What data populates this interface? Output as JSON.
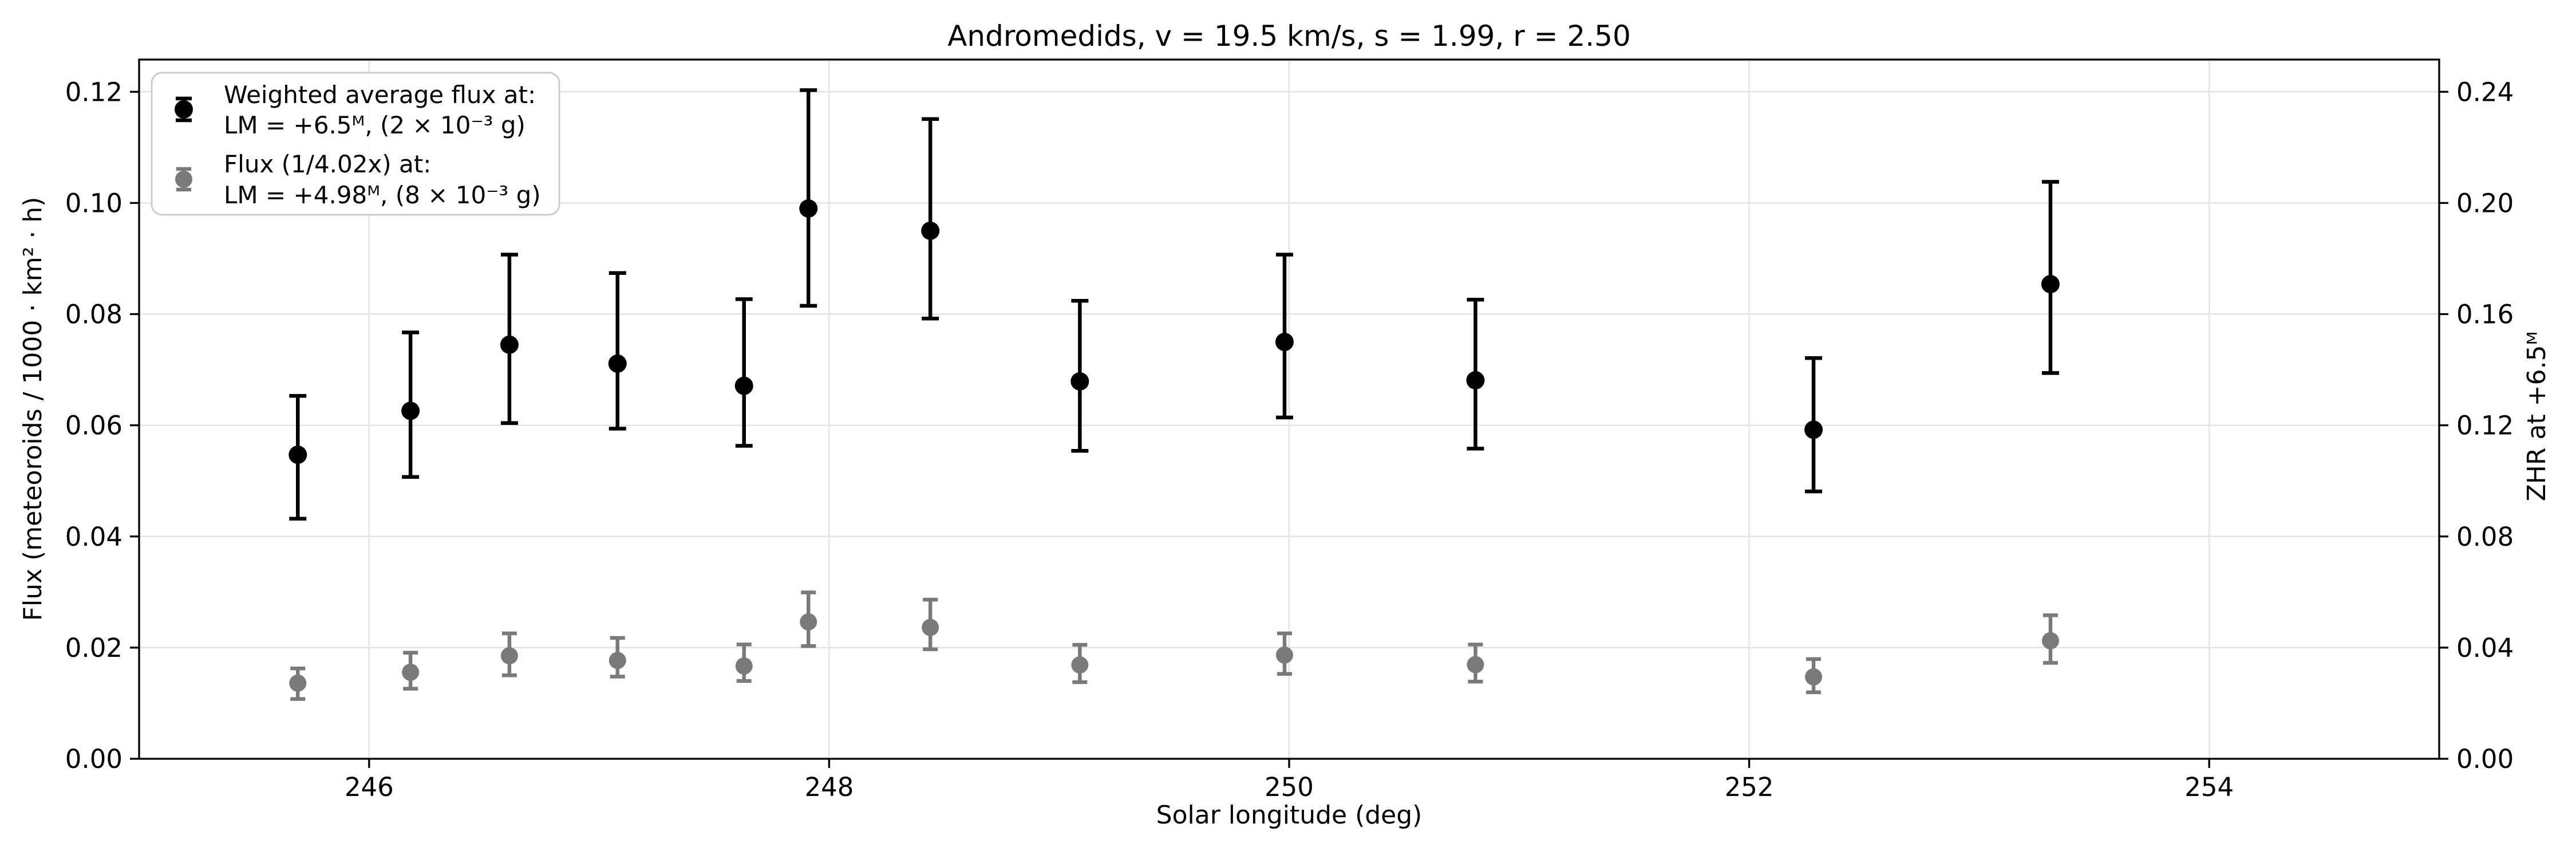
{
  "title": "Andromedids, v = 19.5 km/s, s = 1.99, r = 2.50",
  "axes": {
    "xlabel": "Solar longitude (deg)",
    "ylabel_left": "Flux (meteoroids / 1000 · km² · h)",
    "ylabel_right": "ZHR at +6.5ᴹ",
    "x_ticks": [
      246,
      248,
      250,
      252,
      254
    ],
    "y_ticks_left": [
      0.0,
      0.02,
      0.04,
      0.06,
      0.08,
      0.1,
      0.12
    ],
    "y_ticks_right": [
      0.0,
      0.04,
      0.08,
      0.12,
      0.16,
      0.2,
      0.24
    ],
    "xlim": [
      245.0,
      255.0
    ],
    "ylim_left": [
      0,
      0.1258
    ],
    "ylim_right": [
      0,
      0.2516
    ],
    "grid": true
  },
  "legend": {
    "position": "upper left",
    "entries": [
      {
        "marker_color": "#000000",
        "line1": "Weighted average flux at:",
        "line2": "LM = +6.5ᴹ, (2 × 10⁻³ g)"
      },
      {
        "marker_color": "#7a7a7a",
        "line1": "Flux (1/4.02x) at:",
        "line2": "LM = +4.98ᴹ, (8 × 10⁻³ g)"
      }
    ]
  },
  "chart_data": {
    "type": "scatter",
    "x": [
      245.69,
      246.18,
      246.61,
      247.08,
      247.63,
      247.91,
      248.44,
      249.09,
      249.98,
      250.81,
      252.28,
      253.31
    ],
    "xlabel": "Solar longitude (deg)",
    "ylabel": "Flux (meteoroids / 1000 · km² · h)",
    "ylabel_right": "ZHR at +6.5ᴹ",
    "title": "Andromedids, v = 19.5 km/s, s = 1.99, r = 2.50",
    "right_axis_scale_vs_left": 2.0,
    "series": [
      {
        "name": "Weighted average flux at: LM = +6.5ᴹ, (2 × 10⁻³ g)",
        "color": "#000000",
        "marker": "circle-errorbar",
        "values": [
          0.0547,
          0.0626,
          0.0745,
          0.0711,
          0.0671,
          0.099,
          0.095,
          0.0679,
          0.075,
          0.0681,
          0.0592,
          0.0854
        ],
        "err_plus": [
          0.0106,
          0.0141,
          0.0162,
          0.0163,
          0.0156,
          0.0213,
          0.0201,
          0.0145,
          0.0157,
          0.0145,
          0.0129,
          0.0184
        ],
        "err_minus": [
          0.0115,
          0.0119,
          0.0141,
          0.0117,
          0.0108,
          0.0175,
          0.0158,
          0.0125,
          0.0136,
          0.0123,
          0.0111,
          0.016
        ]
      },
      {
        "name": "Flux (1/4.02x) at: LM = +4.98ᴹ, (8 × 10⁻³ g)",
        "color": "#7a7a7a",
        "marker": "circle-errorbar",
        "values": [
          0.01361,
          0.01557,
          0.01853,
          0.01769,
          0.01669,
          0.02463,
          0.02363,
          0.01689,
          0.01866,
          0.01694,
          0.01473,
          0.02124
        ],
        "err_plus": [
          0.00264,
          0.00351,
          0.00403,
          0.00406,
          0.00388,
          0.0053,
          0.005,
          0.00361,
          0.00391,
          0.00361,
          0.00321,
          0.00458
        ],
        "err_minus": [
          0.00286,
          0.00296,
          0.00351,
          0.00291,
          0.00269,
          0.00435,
          0.00393,
          0.00311,
          0.00338,
          0.00306,
          0.00276,
          0.00398
        ]
      }
    ]
  }
}
